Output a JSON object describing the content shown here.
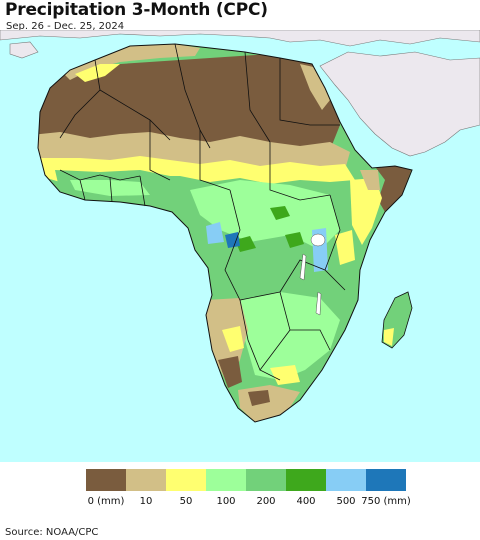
{
  "map": {
    "title": "Precipitation 3-Month (CPC)",
    "subtitle": "Sep. 26 - Dec. 25, 2024",
    "colors": {
      "ocean": "#bfffff",
      "other_land": "#ece8ee",
      "borders": "#111111"
    }
  },
  "legend": {
    "labels": [
      {
        "text": "0 (mm)",
        "at": 0
      },
      {
        "text": "10",
        "at": 1
      },
      {
        "text": "50",
        "at": 2
      },
      {
        "text": "100",
        "at": 3
      },
      {
        "text": "200",
        "at": 4
      },
      {
        "text": "400",
        "at": 5
      },
      {
        "text": "500",
        "at": 6
      },
      {
        "text": "750 (mm)",
        "at": 7
      }
    ],
    "colors": [
      "#7a5c3e",
      "#d2bf87",
      "#ffff70",
      "#9dff9a",
      "#72d17a",
      "#3ea81c",
      "#87cdf5",
      "#1e77b9"
    ]
  },
  "footer": {
    "source": "Source: NOAA/CPC"
  }
}
